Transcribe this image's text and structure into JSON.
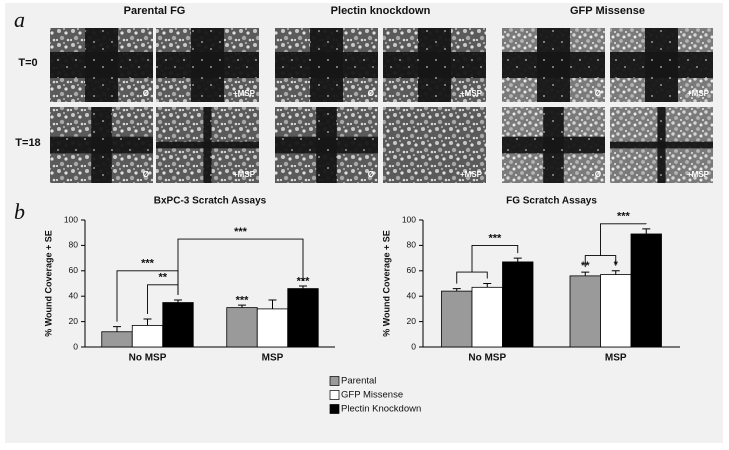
{
  "figure": {
    "panel_a_label": "a",
    "panel_b_label": "b",
    "columns": [
      "Parental FG",
      "Plectin knockdown",
      "GFP Missense"
    ],
    "rows": [
      "T=0",
      "T=18"
    ],
    "image_labels": [
      "Ø",
      "+MSP"
    ]
  },
  "chart_data": [
    {
      "type": "bar",
      "title": "BxPC-3 Scratch Assays",
      "y_label": "% Wound Coverage + SE",
      "categories": [
        "No MSP",
        "MSP"
      ],
      "series": [
        {
          "name": "Parental",
          "color": "#9a9a9a",
          "values": [
            12,
            31
          ],
          "errors": [
            4,
            2
          ]
        },
        {
          "name": "GFP Missense",
          "color": "#ffffff",
          "values": [
            17,
            30
          ],
          "errors": [
            5,
            7
          ]
        },
        {
          "name": "Plectin Knockdown",
          "color": "#000000",
          "values": [
            35,
            46
          ],
          "errors": [
            2,
            2
          ]
        }
      ],
      "ylim": [
        0,
        100
      ],
      "yticks": [
        0,
        20,
        40,
        60,
        80,
        100
      ],
      "annotations": [
        "***",
        "**",
        "***",
        "***",
        "***"
      ]
    },
    {
      "type": "bar",
      "title": "FG Scratch Assays",
      "y_label": "% Wound Coverage + SE",
      "categories": [
        "No MSP",
        "MSP"
      ],
      "series": [
        {
          "color": "#9a9a9a",
          "values": [
            44,
            56
          ],
          "errors": [
            2,
            3
          ]
        },
        {
          "color": "#ffffff",
          "values": [
            47,
            57
          ],
          "errors": [
            3,
            3
          ]
        },
        {
          "color": "#000000",
          "values": [
            67,
            89
          ],
          "errors": [
            3,
            4
          ]
        }
      ],
      "ylim": [
        0,
        100
      ],
      "yticks": [
        0,
        20,
        40,
        60,
        80,
        100
      ],
      "annotations": [
        "***",
        "**",
        "*",
        "***"
      ]
    }
  ]
}
